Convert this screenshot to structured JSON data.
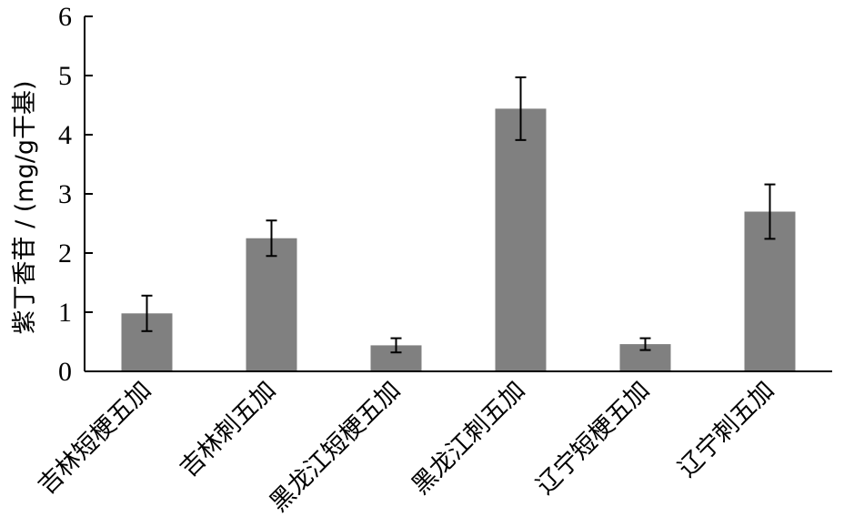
{
  "chart_data": {
    "type": "bar",
    "title": "",
    "xlabel": "",
    "ylabel": "紫丁香苷 / (mg/g干基)",
    "categories": [
      "吉林短梗五加",
      "吉林刺五加",
      "黑龙江短梗五加",
      "黑龙江刺五加",
      "辽宁短梗五加",
      "辽宁刺五加"
    ],
    "values": [
      0.98,
      2.25,
      0.44,
      4.44,
      0.46,
      2.7
    ],
    "errors": [
      0.3,
      0.3,
      0.12,
      0.53,
      0.1,
      0.46
    ],
    "ylim": [
      0,
      6
    ],
    "yticks": [
      "0",
      "1",
      "2",
      "3",
      "4",
      "5",
      "6"
    ],
    "grid": false,
    "colors": {
      "bar": "#808080",
      "axis": "#000000"
    }
  }
}
